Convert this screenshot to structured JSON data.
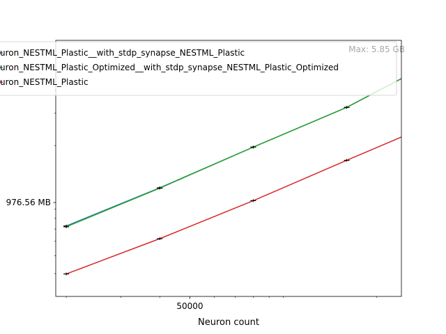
{
  "chart_data": {
    "type": "line",
    "title": "",
    "xlabel": "Neuron count",
    "ylabel": "",
    "x_scale": "log",
    "y_scale": "log",
    "xlim": [
      18500,
      240000
    ],
    "ylim": [
      300,
      7500
    ],
    "x_ticks": [
      {
        "value": 50000,
        "label": "50000"
      }
    ],
    "x_minor_ticks": [
      20000,
      30000,
      40000,
      60000,
      70000,
      80000,
      90000,
      100000,
      200000
    ],
    "y_ticks": [
      {
        "value": 976.56,
        "label": "976.56 MB"
      }
    ],
    "y_minor_ticks": [
      400,
      500,
      600,
      700,
      800,
      900,
      2000,
      3000,
      4000
    ],
    "legend": {
      "placement": "upper-left",
      "entries": [
        {
          "label": "uron_NESTML_Plastic__with_stdp_synapse_NESTML_Plastic",
          "color": "#1f77b4"
        },
        {
          "label": "uron_NESTML_Plastic_Optimized__with_stdp_synapse_NESTML_Plastic_Optimized",
          "color": "#2ca02c"
        },
        {
          "label": "uron_NESTML_Plastic",
          "color": "#d62728"
        }
      ]
    },
    "series": [
      {
        "color": "#1f77b4",
        "x": [
          20000,
          40000,
          80000,
          160000,
          320000
        ],
        "y": [
          727,
          1175,
          1960,
          3230,
          5990
        ]
      },
      {
        "color": "#2ca02c",
        "x": [
          20000,
          40000,
          80000,
          160000,
          320000
        ],
        "y": [
          720,
          1170,
          1960,
          3230,
          5990
        ]
      },
      {
        "color": "#d62728",
        "x": [
          20000,
          40000,
          80000,
          160000,
          320000
        ],
        "y": [
          398,
          620,
          1000,
          1660,
          2740
        ]
      }
    ],
    "annotations": [
      {
        "text": "Max: 5.85 GB",
        "color": "#000000"
      }
    ]
  }
}
